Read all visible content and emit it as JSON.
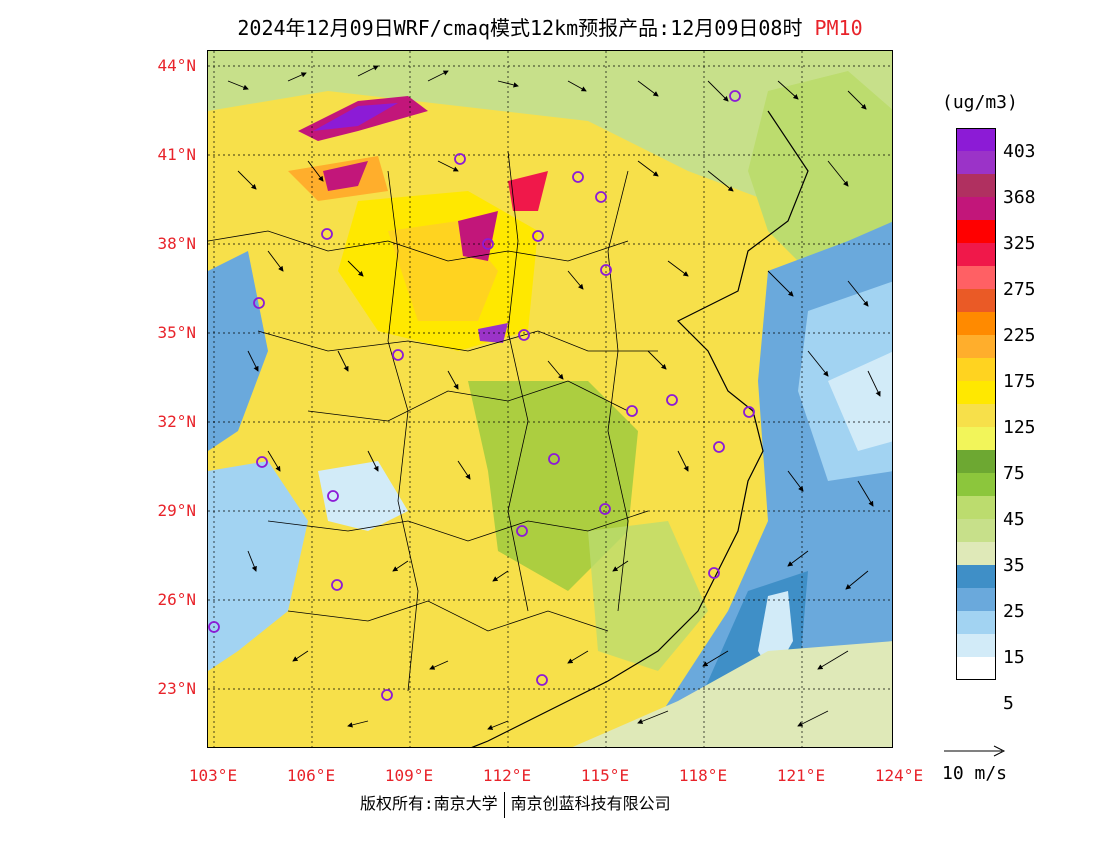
{
  "title": "2024年12月09日WRF/cmaq模式12km预报产品:12月09日08时",
  "title_highlight": "PM10",
  "lat_labels": [
    "44°N",
    "41°N",
    "38°N",
    "35°N",
    "32°N",
    "29°N",
    "26°N",
    "23°N"
  ],
  "lon_labels": [
    "103°E",
    "106°E",
    "109°E",
    "112°E",
    "115°E",
    "118°E",
    "121°E",
    "124°E"
  ],
  "legend": {
    "unit": "(ug/m3)",
    "colors": [
      "#8c1bd6",
      "#9b33c8",
      "#b03060",
      "#c2167a",
      "#ff0000",
      "#f0184a",
      "#ff6064",
      "#ea5a26",
      "#ff8a00",
      "#ffae2c",
      "#ffd320",
      "#ffe800",
      "#f7e04a",
      "#f2f55a",
      "#6da832",
      "#8cc63c",
      "#bcdc6e",
      "#c7e08a",
      "#dfe9b8",
      "#3f8fc7",
      "#6aa9dc",
      "#a2d3f2",
      "#d2ebf8",
      "#ffffff"
    ],
    "labels": [
      "403",
      "368",
      "325",
      "275",
      "225",
      "175",
      "125",
      "75",
      "45",
      "35",
      "25",
      "15",
      "5"
    ]
  },
  "vector_reference": "10 m/s",
  "footer": {
    "left": "版权所有:南京大学",
    "right": "南京创蓝科技有限公司"
  }
}
